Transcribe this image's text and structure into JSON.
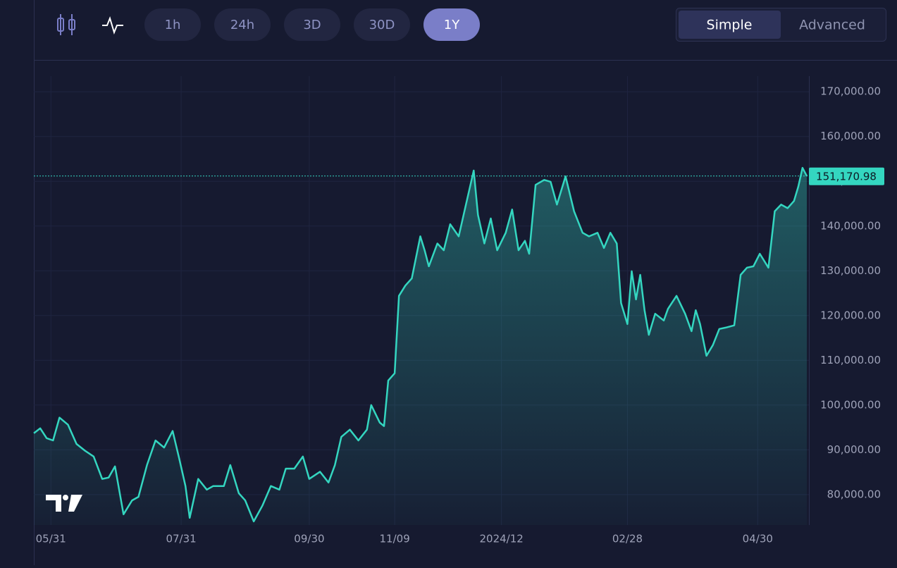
{
  "toolbar": {
    "ranges": [
      "1h",
      "24h",
      "3D",
      "30D",
      "1Y"
    ],
    "modes": [
      "Simple",
      "Advanced"
    ]
  },
  "chart_data": {
    "type": "line",
    "x": [
      -8,
      -5,
      -2,
      1,
      4,
      8,
      12,
      16,
      20,
      24,
      27,
      30,
      34,
      38,
      41,
      45,
      49,
      53,
      57,
      60,
      63,
      65,
      69,
      73,
      76,
      81,
      84,
      88,
      91,
      95,
      99,
      103,
      107,
      110,
      114,
      118,
      121,
      126,
      130,
      133,
      136,
      140,
      144,
      148,
      150,
      154,
      156,
      158,
      161,
      163,
      166,
      169,
      173,
      175,
      177,
      181,
      184,
      187,
      191,
      194,
      198,
      200,
      203,
      206,
      209,
      213,
      216,
      219,
      222,
      224,
      227,
      231,
      234,
      237,
      241,
      245,
      249,
      252,
      256,
      259,
      262,
      265,
      267,
      270,
      272,
      274,
      276,
      278,
      280,
      283,
      287,
      289,
      293,
      297,
      300,
      302,
      304,
      307,
      310,
      313,
      316,
      320,
      323,
      326,
      329,
      332,
      336,
      339,
      342,
      345,
      348,
      350,
      352,
      354
    ],
    "series": [
      {
        "color": "#34d6c0",
        "values": [
          93700,
          94800,
          92600,
          92100,
          97200,
          95600,
          91300,
          89800,
          88500,
          83500,
          83800,
          86300,
          75600,
          78700,
          79500,
          86600,
          92100,
          90500,
          94200,
          88200,
          81900,
          74800,
          83500,
          81100,
          81900,
          81900,
          86600,
          80300,
          78700,
          74000,
          77500,
          81900,
          81100,
          85800,
          85800,
          88500,
          83500,
          85100,
          82700,
          86600,
          92900,
          94500,
          92100,
          94500,
          100000,
          96100,
          95300,
          105500,
          107100,
          124400,
          126700,
          128300,
          137700,
          134600,
          131000,
          136100,
          134600,
          140400,
          137700,
          144000,
          152400,
          142500,
          136100,
          141700,
          134600,
          138500,
          143700,
          134600,
          136700,
          133800,
          149200,
          150300,
          149900,
          144800,
          151100,
          143300,
          138500,
          137700,
          138500,
          135100,
          138500,
          136100,
          122800,
          118100,
          129900,
          123600,
          129100,
          121200,
          115700,
          120400,
          118900,
          121500,
          124400,
          120400,
          116500,
          121200,
          118100,
          111000,
          113400,
          117000,
          117300,
          117800,
          129100,
          130700,
          131000,
          133800,
          130700,
          143300,
          144800,
          144000,
          145600,
          148800,
          153000,
          151170.98
        ]
      }
    ],
    "xlim": [
      -8,
      354
    ],
    "xticks": [
      {
        "value": 0,
        "label": "05/31"
      },
      {
        "value": 61,
        "label": "07/31"
      },
      {
        "value": 121,
        "label": "09/30"
      },
      {
        "value": 161,
        "label": "11/09"
      },
      {
        "value": 211,
        "label": "2024/12"
      },
      {
        "value": 270,
        "label": "02/28"
      },
      {
        "value": 331,
        "label": "04/30"
      }
    ],
    "ylim": [
      73200,
      173500
    ],
    "yticks": [
      {
        "value": 80000,
        "label": "80,000.00"
      },
      {
        "value": 90000,
        "label": "90,000.00"
      },
      {
        "value": 100000,
        "label": "100,000.00"
      },
      {
        "value": 110000,
        "label": "110,000.00"
      },
      {
        "value": 120000,
        "label": "120,000.00"
      },
      {
        "value": 130000,
        "label": "130,000.00"
      },
      {
        "value": 140000,
        "label": "140,000.00"
      },
      {
        "value": 150000,
        "label": "150,000.00"
      },
      {
        "value": 160000,
        "label": "160,000.00"
      },
      {
        "value": 170000,
        "label": "170,000.00"
      }
    ],
    "last_price": {
      "value": 151170.98,
      "label": "151,170.98"
    },
    "grid": true
  }
}
